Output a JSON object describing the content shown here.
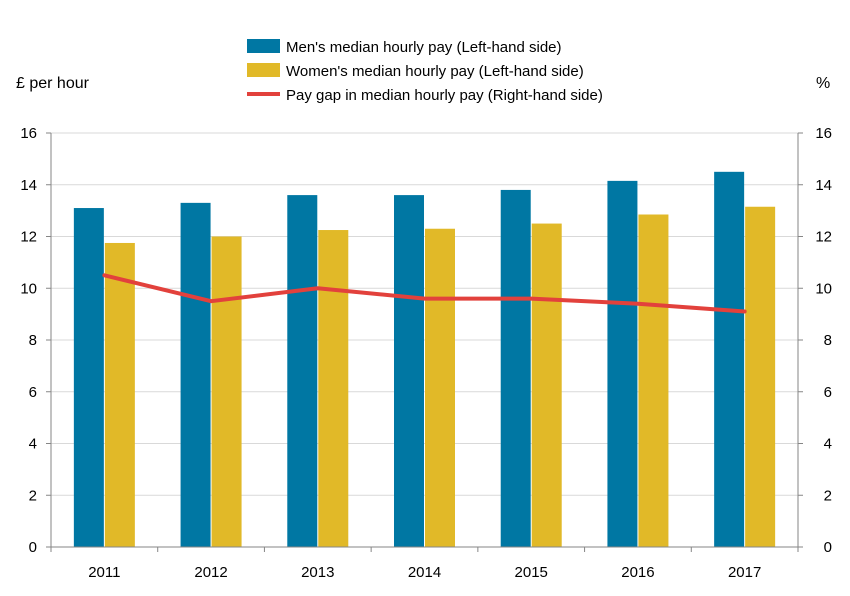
{
  "chart_data": {
    "type": "bar",
    "categories": [
      "2011",
      "2012",
      "2013",
      "2014",
      "2015",
      "2016",
      "2017"
    ],
    "series": [
      {
        "name": "Men's median hourly pay (Left-hand side)",
        "kind": "bar",
        "axis": "left",
        "color": "#0077a3",
        "values": [
          13.1,
          13.3,
          13.6,
          13.6,
          13.8,
          14.15,
          14.5
        ]
      },
      {
        "name": "Women's median hourly pay (Left-hand side)",
        "kind": "bar",
        "axis": "left",
        "color": "#e1b928",
        "values": [
          11.75,
          12.0,
          12.25,
          12.3,
          12.5,
          12.85,
          13.15
        ]
      },
      {
        "name": "Pay gap in median hourly pay (Right-hand side)",
        "kind": "line",
        "axis": "right",
        "color": "#e2413c",
        "values": [
          10.5,
          9.5,
          10.0,
          9.6,
          9.6,
          9.4,
          9.1
        ]
      }
    ],
    "ylabel_left": "£ per hour",
    "ylabel_right": "%",
    "ylim_left": [
      0,
      16
    ],
    "ylim_right": [
      0,
      16
    ],
    "yticks_left": [
      "0",
      "2",
      "4",
      "6",
      "8",
      "10",
      "12",
      "14",
      "16"
    ],
    "yticks_right": [
      "0",
      "2",
      "4",
      "6",
      "8",
      "10",
      "12",
      "14",
      "16"
    ],
    "grid": "horizontal",
    "grid_color": "#d9d9d9",
    "legend_position": "top-center"
  }
}
